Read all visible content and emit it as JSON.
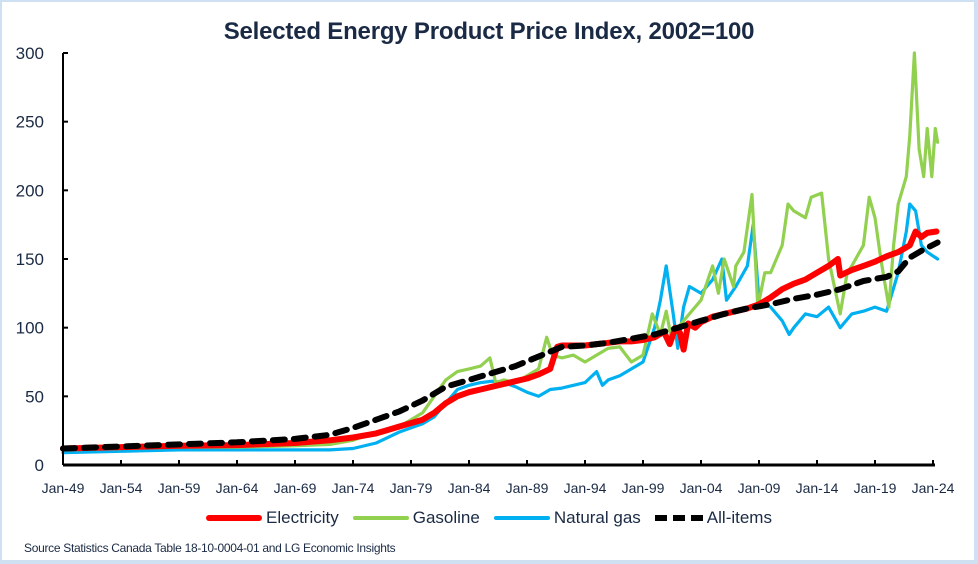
{
  "chart_data": {
    "type": "line",
    "title": "Selected Energy Product Price Index, 2002=100",
    "xlabel": "",
    "ylabel": "",
    "ylim": [
      0,
      300
    ],
    "xlim": [
      1949,
      2024.5
    ],
    "yticks": [
      0,
      50,
      100,
      150,
      200,
      250,
      300
    ],
    "xticks": [
      {
        "label": "Jan-49",
        "year": 1949
      },
      {
        "label": "Jan-54",
        "year": 1954
      },
      {
        "label": "Jan-59",
        "year": 1959
      },
      {
        "label": "Jan-64",
        "year": 1964
      },
      {
        "label": "Jan-69",
        "year": 1969
      },
      {
        "label": "Jan-74",
        "year": 1974
      },
      {
        "label": "Jan-79",
        "year": 1979
      },
      {
        "label": "Jan-84",
        "year": 1984
      },
      {
        "label": "Jan-89",
        "year": 1989
      },
      {
        "label": "Jan-94",
        "year": 1994
      },
      {
        "label": "Jan-99",
        "year": 1999
      },
      {
        "label": "Jan-04",
        "year": 2004
      },
      {
        "label": "Jan-09",
        "year": 2009
      },
      {
        "label": "Jan-14",
        "year": 2014
      },
      {
        "label": "Jan-19",
        "year": 2019
      },
      {
        "label": "Jan-24",
        "year": 2024
      }
    ],
    "grid": false,
    "legend_position": "bottom",
    "series": [
      {
        "name": "Electricity",
        "color": "#ff0000",
        "style": "solid-thick",
        "points": [
          [
            1949,
            12
          ],
          [
            1954,
            13
          ],
          [
            1959,
            14
          ],
          [
            1964,
            14.5
          ],
          [
            1969,
            16
          ],
          [
            1972,
            18
          ],
          [
            1974,
            20
          ],
          [
            1976,
            23
          ],
          [
            1978,
            28
          ],
          [
            1980,
            33
          ],
          [
            1981,
            38
          ],
          [
            1982,
            45
          ],
          [
            1983,
            50
          ],
          [
            1984,
            53
          ],
          [
            1985,
            55
          ],
          [
            1986,
            57
          ],
          [
            1987,
            59
          ],
          [
            1988,
            61
          ],
          [
            1989,
            63
          ],
          [
            1990,
            66
          ],
          [
            1991,
            70
          ],
          [
            1991.6,
            86
          ],
          [
            1992,
            87
          ],
          [
            1993,
            87
          ],
          [
            1994,
            87
          ],
          [
            1995,
            88
          ],
          [
            1996,
            89
          ],
          [
            1997,
            90
          ],
          [
            1998,
            90
          ],
          [
            1999,
            91
          ],
          [
            2000,
            93
          ],
          [
            2000.8,
            97
          ],
          [
            2001.3,
            88
          ],
          [
            2001.8,
            100
          ],
          [
            2002.2,
            96
          ],
          [
            2002.5,
            84
          ],
          [
            2002.9,
            103
          ],
          [
            2003.5,
            100
          ],
          [
            2004,
            104
          ],
          [
            2005,
            108
          ],
          [
            2006,
            110
          ],
          [
            2007,
            112
          ],
          [
            2008,
            114
          ],
          [
            2009,
            117
          ],
          [
            2010,
            122
          ],
          [
            2011,
            128
          ],
          [
            2012,
            132
          ],
          [
            2013,
            135
          ],
          [
            2014,
            140
          ],
          [
            2015,
            145
          ],
          [
            2015.8,
            150
          ],
          [
            2016,
            138
          ],
          [
            2016.5,
            140
          ],
          [
            2017,
            142
          ],
          [
            2018,
            145
          ],
          [
            2019,
            148
          ],
          [
            2020,
            152
          ],
          [
            2021,
            155
          ],
          [
            2022,
            160
          ],
          [
            2022.5,
            170
          ],
          [
            2023,
            166
          ],
          [
            2023.5,
            169
          ],
          [
            2024.3,
            170
          ]
        ]
      },
      {
        "name": "Gasoline",
        "color": "#92d050",
        "style": "solid",
        "points": [
          [
            1949,
            11
          ],
          [
            1954,
            12
          ],
          [
            1959,
            13
          ],
          [
            1964,
            13
          ],
          [
            1969,
            14
          ],
          [
            1972,
            15
          ],
          [
            1974,
            18
          ],
          [
            1976,
            24
          ],
          [
            1978,
            28
          ],
          [
            1979,
            33
          ],
          [
            1980,
            38
          ],
          [
            1981,
            50
          ],
          [
            1982,
            62
          ],
          [
            1983,
            68
          ],
          [
            1984,
            70
          ],
          [
            1985,
            72
          ],
          [
            1985.8,
            78
          ],
          [
            1986.3,
            60
          ],
          [
            1987,
            62
          ],
          [
            1988,
            60
          ],
          [
            1989,
            65
          ],
          [
            1990,
            70
          ],
          [
            1990.7,
            93
          ],
          [
            1991.2,
            80
          ],
          [
            1992,
            78
          ],
          [
            1993,
            80
          ],
          [
            1994,
            75
          ],
          [
            1995,
            80
          ],
          [
            1996,
            85
          ],
          [
            1997,
            86
          ],
          [
            1998,
            75
          ],
          [
            1999,
            80
          ],
          [
            1999.8,
            110
          ],
          [
            2000.5,
            95
          ],
          [
            2001,
            112
          ],
          [
            2001.5,
            90
          ],
          [
            2002,
            100
          ],
          [
            2003,
            110
          ],
          [
            2004,
            120
          ],
          [
            2005,
            145
          ],
          [
            2005.5,
            125
          ],
          [
            2006,
            150
          ],
          [
            2006.8,
            130
          ],
          [
            2007,
            145
          ],
          [
            2007.7,
            155
          ],
          [
            2008.4,
            197
          ],
          [
            2008.9,
            115
          ],
          [
            2009.5,
            140
          ],
          [
            2010,
            140
          ],
          [
            2011,
            160
          ],
          [
            2011.5,
            190
          ],
          [
            2012,
            185
          ],
          [
            2013,
            180
          ],
          [
            2013.5,
            195
          ],
          [
            2014.4,
            198
          ],
          [
            2015,
            150
          ],
          [
            2015.5,
            130
          ],
          [
            2016,
            110
          ],
          [
            2016.6,
            140
          ],
          [
            2017,
            145
          ],
          [
            2018,
            160
          ],
          [
            2018.5,
            195
          ],
          [
            2019,
            180
          ],
          [
            2019.5,
            150
          ],
          [
            2020.2,
            115
          ],
          [
            2020.6,
            160
          ],
          [
            2021,
            190
          ],
          [
            2021.7,
            210
          ],
          [
            2022,
            240
          ],
          [
            2022.4,
            300
          ],
          [
            2022.8,
            230
          ],
          [
            2023.2,
            210
          ],
          [
            2023.5,
            245
          ],
          [
            2023.9,
            210
          ],
          [
            2024.2,
            245
          ],
          [
            2024.4,
            235
          ]
        ]
      },
      {
        "name": "Natural gas",
        "color": "#00b0f0",
        "style": "solid",
        "points": [
          [
            1949,
            9
          ],
          [
            1954,
            10
          ],
          [
            1959,
            11
          ],
          [
            1964,
            11
          ],
          [
            1969,
            11
          ],
          [
            1972,
            11
          ],
          [
            1974,
            12
          ],
          [
            1976,
            16
          ],
          [
            1978,
            24
          ],
          [
            1980,
            30
          ],
          [
            1981,
            35
          ],
          [
            1982,
            45
          ],
          [
            1983,
            55
          ],
          [
            1984,
            58
          ],
          [
            1985,
            60
          ],
          [
            1986,
            61
          ],
          [
            1987,
            60
          ],
          [
            1988,
            57
          ],
          [
            1989,
            53
          ],
          [
            1990,
            50
          ],
          [
            1991,
            55
          ],
          [
            1992,
            56
          ],
          [
            1993,
            58
          ],
          [
            1994,
            60
          ],
          [
            1995,
            68
          ],
          [
            1995.5,
            58
          ],
          [
            1996,
            62
          ],
          [
            1997,
            65
          ],
          [
            1998,
            70
          ],
          [
            1999,
            75
          ],
          [
            2000,
            100
          ],
          [
            2000.5,
            120
          ],
          [
            2001,
            145
          ],
          [
            2001.6,
            110
          ],
          [
            2002,
            85
          ],
          [
            2002.5,
            115
          ],
          [
            2003,
            130
          ],
          [
            2004,
            125
          ],
          [
            2005,
            135
          ],
          [
            2005.8,
            150
          ],
          [
            2006.2,
            120
          ],
          [
            2007,
            130
          ],
          [
            2008,
            145
          ],
          [
            2008.5,
            175
          ],
          [
            2009,
            120
          ],
          [
            2010,
            115
          ],
          [
            2011,
            105
          ],
          [
            2011.6,
            95
          ],
          [
            2012,
            100
          ],
          [
            2013,
            110
          ],
          [
            2014,
            108
          ],
          [
            2015,
            115
          ],
          [
            2016,
            100
          ],
          [
            2017,
            110
          ],
          [
            2018,
            112
          ],
          [
            2019,
            115
          ],
          [
            2020,
            112
          ],
          [
            2021,
            140
          ],
          [
            2021.7,
            170
          ],
          [
            2022,
            190
          ],
          [
            2022.5,
            185
          ],
          [
            2023,
            160
          ],
          [
            2023.5,
            155
          ],
          [
            2024.4,
            150
          ]
        ]
      },
      {
        "name": "All-items",
        "color": "#000000",
        "style": "dashed",
        "points": [
          [
            1949,
            12
          ],
          [
            1954,
            13.5
          ],
          [
            1959,
            15
          ],
          [
            1964,
            16.5
          ],
          [
            1969,
            19
          ],
          [
            1972,
            22
          ],
          [
            1974,
            27
          ],
          [
            1976,
            33
          ],
          [
            1978,
            39
          ],
          [
            1980,
            47
          ],
          [
            1982,
            57
          ],
          [
            1984,
            62
          ],
          [
            1986,
            67
          ],
          [
            1988,
            72
          ],
          [
            1990,
            79
          ],
          [
            1992,
            86
          ],
          [
            1994,
            87
          ],
          [
            1996,
            89
          ],
          [
            1998,
            92
          ],
          [
            2000,
            95
          ],
          [
            2002,
            100
          ],
          [
            2004,
            105
          ],
          [
            2006,
            110
          ],
          [
            2008,
            114
          ],
          [
            2010,
            117
          ],
          [
            2012,
            121
          ],
          [
            2014,
            124
          ],
          [
            2016,
            128
          ],
          [
            2018,
            134
          ],
          [
            2020,
            137
          ],
          [
            2021,
            141
          ],
          [
            2022,
            151
          ],
          [
            2023,
            156
          ],
          [
            2024.4,
            162
          ]
        ]
      }
    ],
    "source": "Source Statistics Canada Table 18-10-0004-01 and LG Economic Insights"
  },
  "legend": {
    "items": [
      {
        "label": "Electricity"
      },
      {
        "label": "Gasoline"
      },
      {
        "label": "Natural gas"
      },
      {
        "label": "All-items"
      }
    ]
  }
}
